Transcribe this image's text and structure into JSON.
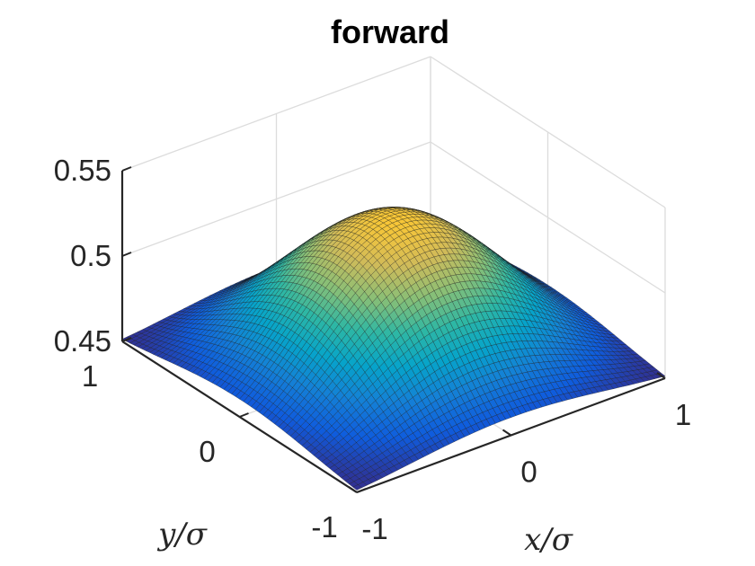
{
  "chart_data": {
    "type": "surface",
    "title": "forward",
    "xlabel": "x/σ",
    "ylabel": "y/σ",
    "zlabel": "",
    "xlim": [
      -1,
      1
    ],
    "ylim": [
      -1,
      1
    ],
    "zlim": [
      0.45,
      0.55
    ],
    "x_ticks": [
      "-1",
      "0",
      "1"
    ],
    "y_ticks": [
      "-1",
      "0",
      "1"
    ],
    "z_ticks": [
      "0.45",
      "0.5",
      "0.55"
    ],
    "x_tick_values": [
      -1,
      0,
      1
    ],
    "y_tick_values": [
      -1,
      0,
      1
    ],
    "z_tick_values": [
      0.45,
      0.5,
      0.55
    ],
    "surface": {
      "function": "z = 0.45 + 0.083 * cos(pi*x/2.6)^2 * cos(pi*y/2.6)^2 (approximate)",
      "z_peak": 0.533,
      "z_at_corners": 0.45,
      "z_at_edge_midpoints": 0.487
    },
    "colormap": "parula",
    "colormap_stops": [
      "#352a87",
      "#0f5cdd",
      "#1481d6",
      "#06a4ca",
      "#2eb7a4",
      "#87bf77",
      "#d1bb59",
      "#fec832",
      "#f9fb0e"
    ],
    "grid": true
  }
}
